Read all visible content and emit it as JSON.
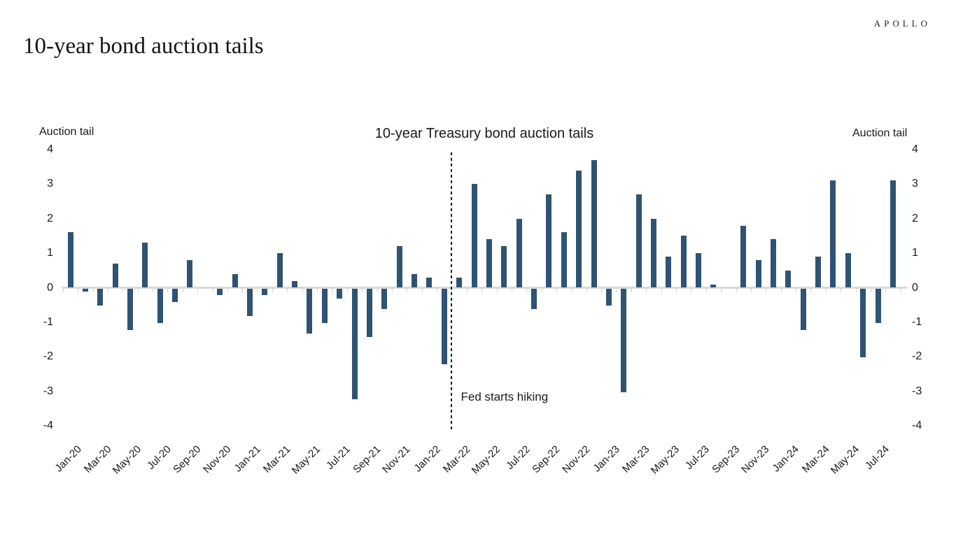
{
  "page": {
    "logo": "APOLLO",
    "title": "10-year bond auction tails"
  },
  "chart_data": {
    "type": "bar",
    "title": "10-year Treasury bond auction tails",
    "left_axis_label": "Auction tail",
    "right_axis_label": "Auction tail",
    "ylim": [
      -4,
      4
    ],
    "yticks": [
      4,
      3,
      2,
      1,
      0,
      -1,
      -2,
      -3,
      -4
    ],
    "grid": false,
    "bar_color": "#2f5373",
    "axis_color": "#d9d9d9",
    "x_tick_label_step": 2,
    "categories": [
      "Jan-20",
      "Feb-20",
      "Mar-20",
      "Apr-20",
      "May-20",
      "Jun-20",
      "Jul-20",
      "Aug-20",
      "Sep-20",
      "Oct-20",
      "Nov-20",
      "Dec-20",
      "Jan-21",
      "Feb-21",
      "Mar-21",
      "Apr-21",
      "May-21",
      "Jun-21",
      "Jul-21",
      "Aug-21",
      "Sep-21",
      "Oct-21",
      "Nov-21",
      "Dec-21",
      "Jan-22",
      "Feb-22",
      "Mar-22",
      "Apr-22",
      "May-22",
      "Jun-22",
      "Jul-22",
      "Aug-22",
      "Sep-22",
      "Oct-22",
      "Nov-22",
      "Dec-22",
      "Jan-23",
      "Feb-23",
      "Mar-23",
      "Apr-23",
      "May-23",
      "Jun-23",
      "Jul-23",
      "Aug-23",
      "Sep-23",
      "Oct-23",
      "Nov-23",
      "Dec-23",
      "Jan-24",
      "Feb-24",
      "Mar-24",
      "Apr-24",
      "May-24",
      "Jun-24",
      "Jul-24",
      "Aug-24"
    ],
    "values": [
      1.6,
      -0.1,
      -0.5,
      0.7,
      -1.2,
      1.3,
      -1.0,
      -0.4,
      0.8,
      0.0,
      -0.2,
      0.4,
      -0.8,
      -0.2,
      1.0,
      0.2,
      -1.3,
      -1.0,
      -0.3,
      -3.2,
      -1.4,
      -0.6,
      1.2,
      0.4,
      0.3,
      -2.2,
      0.3,
      3.0,
      1.4,
      1.2,
      2.0,
      -0.6,
      2.7,
      1.6,
      3.4,
      3.7,
      -0.5,
      -3.0,
      2.7,
      2.0,
      0.9,
      1.5,
      1.0,
      0.1,
      0.0,
      1.8,
      0.8,
      1.4,
      0.5,
      -1.2,
      0.9,
      3.1,
      1.0,
      -2.0,
      -1.0,
      3.1
    ],
    "annotation": {
      "text": "Fed starts hiking",
      "vline_before_category": "Mar-22",
      "line_style": "dashed"
    }
  }
}
